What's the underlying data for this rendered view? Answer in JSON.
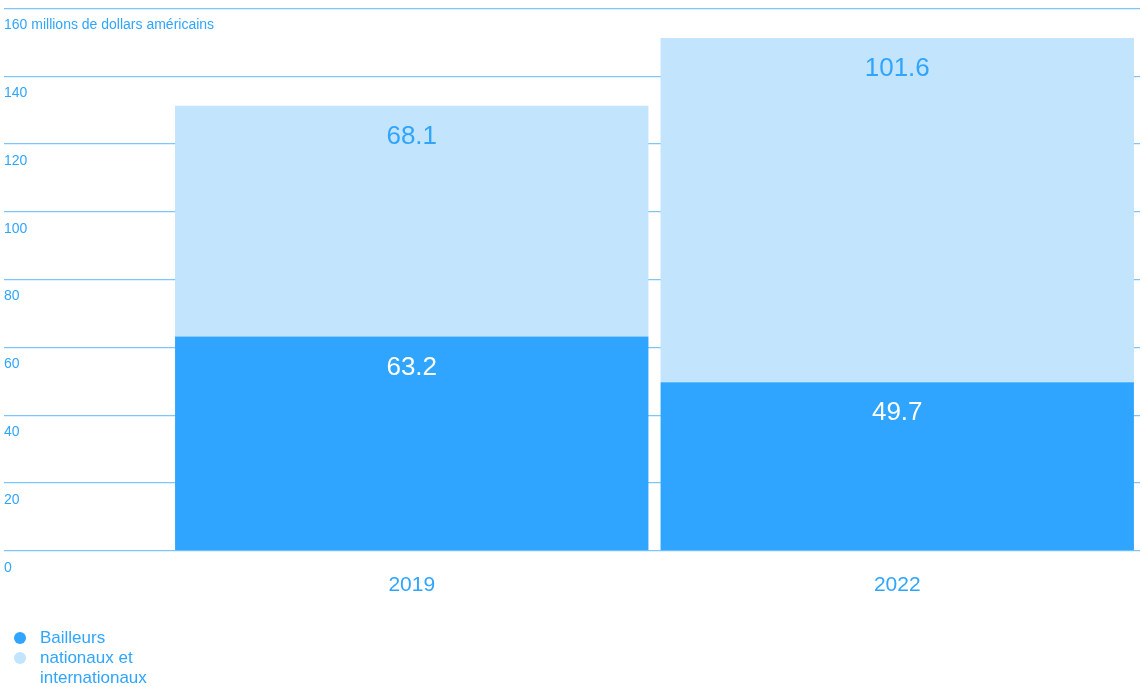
{
  "chart_data": {
    "type": "bar",
    "stacked": true,
    "categories": [
      "2019",
      "2022"
    ],
    "series": [
      {
        "name": "Bailleurs",
        "color": "#2fa5ff",
        "values": [
          63.2,
          49.7
        ]
      },
      {
        "name": "nationaux et internationaux",
        "color": "#c2e4fd",
        "values": [
          68.1,
          101.6
        ]
      }
    ],
    "ylim": [
      0,
      160
    ],
    "yticks": [
      0,
      20,
      40,
      60,
      80,
      100,
      120,
      140,
      160
    ],
    "ylabel": "millions de dollars américains",
    "grid": "y",
    "legend": "bottom left",
    "data_labels": true
  }
}
